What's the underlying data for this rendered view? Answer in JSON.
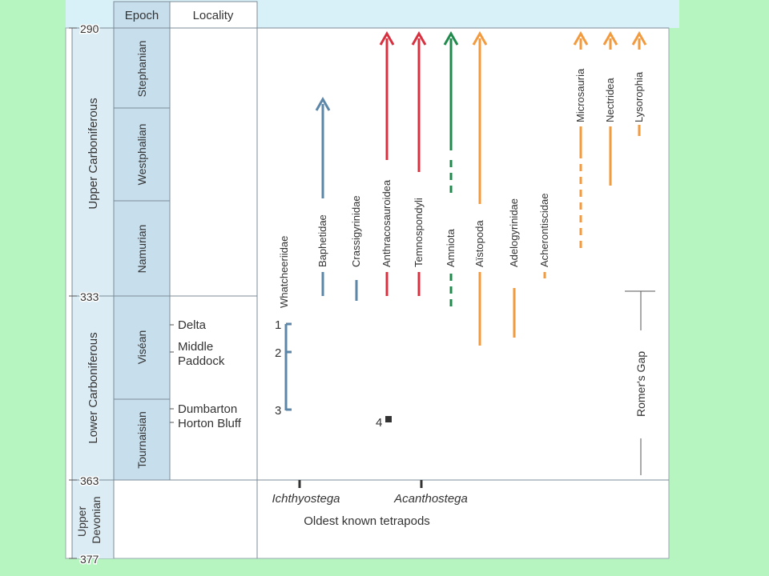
{
  "header": {
    "epoch": "Epoch",
    "locality": "Locality"
  },
  "ages": [
    "290",
    "333",
    "363",
    "377"
  ],
  "periods": [
    "Upper Carboniferous",
    "Lower Carboniferous",
    "Upper Devonian"
  ],
  "stages": [
    "Stephanian",
    "Westphalian",
    "Namurian",
    "Viséan",
    "Tournaisian"
  ],
  "localities": [
    "Delta",
    "Middle",
    "Paddock",
    "Dumbarton",
    "Horton Bluff"
  ],
  "site_numbers": [
    "1",
    "2",
    "3",
    "4"
  ],
  "taxa": [
    "Whatcheeriidae",
    "Baphetidae",
    "Crassigyrinidae",
    "Anthracosauroidea",
    "Temnospondyli",
    "Amniota",
    "Aïstopoda",
    "Adelogyrinidae",
    "Acherontiscidae",
    "Microsauria",
    "Nectridea",
    "Lysorophia"
  ],
  "gap_label": "Romer's Gap",
  "oldest": {
    "taxa": [
      "Ichthyostega",
      "Acanthostega"
    ],
    "caption": "Oldest known tetrapods"
  },
  "colors": {
    "background": "#b7f5c0",
    "panel": "#ffffff",
    "top_band": "#d8f1f8",
    "stage_fill": "#c7deec",
    "period_fill": "#dcecf5",
    "blue": "#5b86a8",
    "red": "#d7303f",
    "green": "#1f8a4c",
    "orange": "#f39a3e"
  }
}
